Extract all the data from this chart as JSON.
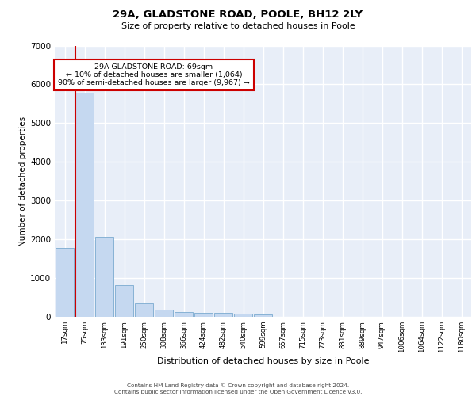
{
  "title_line1": "29A, GLADSTONE ROAD, POOLE, BH12 2LY",
  "title_line2": "Size of property relative to detached houses in Poole",
  "xlabel": "Distribution of detached houses by size in Poole",
  "ylabel": "Number of detached properties",
  "bar_categories": [
    "17sqm",
    "75sqm",
    "133sqm",
    "191sqm",
    "250sqm",
    "308sqm",
    "366sqm",
    "424sqm",
    "482sqm",
    "540sqm",
    "599sqm",
    "657sqm",
    "715sqm",
    "773sqm",
    "831sqm",
    "889sqm",
    "947sqm",
    "1006sqm",
    "1064sqm",
    "1122sqm",
    "1180sqm"
  ],
  "bar_values": [
    1780,
    5780,
    2060,
    820,
    340,
    185,
    115,
    100,
    95,
    75,
    60,
    0,
    0,
    0,
    0,
    0,
    0,
    0,
    0,
    0,
    0
  ],
  "bar_color": "#c5d8f0",
  "bar_edge_color": "#7aaad0",
  "background_color": "#e8eef8",
  "grid_color": "#ffffff",
  "ylim": [
    0,
    7000
  ],
  "yticks": [
    0,
    1000,
    2000,
    3000,
    4000,
    5000,
    6000,
    7000
  ],
  "vline_color": "#cc0000",
  "annotation_text": "29A GLADSTONE ROAD: 69sqm\n← 10% of detached houses are smaller (1,064)\n90% of semi-detached houses are larger (9,967) →",
  "annotation_box_color": "#cc0000",
  "footer_line1": "Contains HM Land Registry data © Crown copyright and database right 2024.",
  "footer_line2": "Contains public sector information licensed under the Open Government Licence v3.0."
}
